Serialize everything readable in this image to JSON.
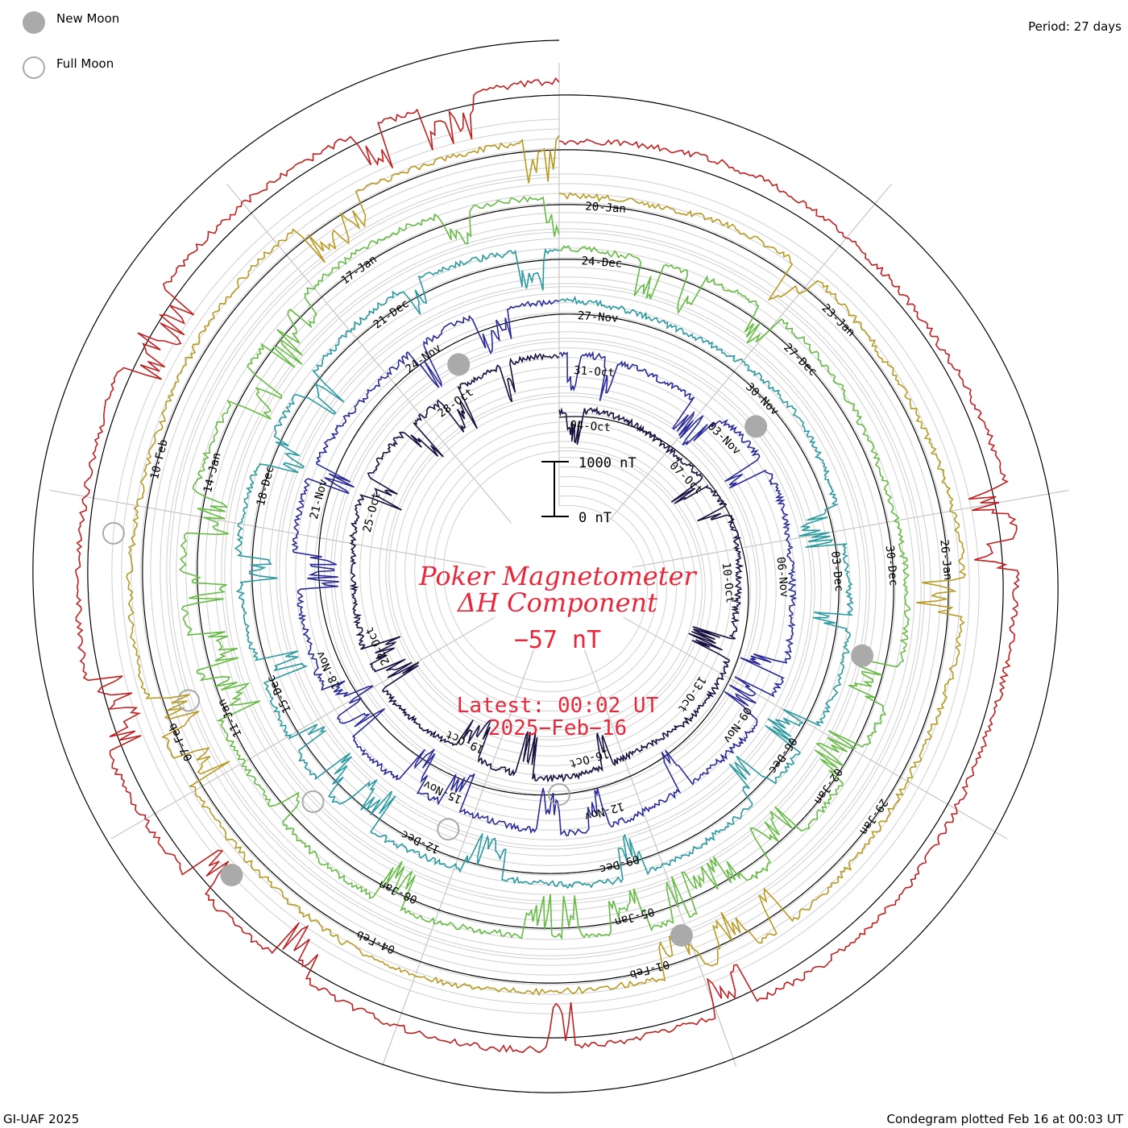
{
  "legend": {
    "new_moon_label": "New Moon",
    "full_moon_label": "Full Moon",
    "new_moon_color": "#aaaaaa",
    "full_moon_color": "#aaaaaa"
  },
  "header": {
    "period": "Period: 27 days"
  },
  "footer": {
    "left": "GI-UAF 2025",
    "right": "Condegram plotted Feb 16 at 00:03 UT"
  },
  "center": {
    "title_line1": "Poker Magnetometer",
    "title_line2": "ΔH Component",
    "value": "−57 nT",
    "latest": "Latest: 00:02 UT",
    "date": "2025−Feb−16",
    "text_color": "#e8283a",
    "scale_top": "1000 nT",
    "scale_bottom": "0 nT"
  },
  "chart_data": {
    "type": "line",
    "title": "Poker Magnetometer ΔH Component",
    "period_days": 27,
    "latest_value_nT": -57,
    "scale_bar_nT": [
      0,
      1000
    ],
    "grid": true,
    "series": [
      {
        "color": "#1a1040",
        "labels": [
          "04-Oct",
          "07-Oct",
          "10-Oct",
          "13-Oct",
          "16-Oct",
          "19-Oct",
          "22-Oct",
          "25-Oct",
          "28-Oct"
        ]
      },
      {
        "color": "#2a2a9a",
        "labels": [
          "31-Oct",
          "03-Nov",
          "06-Nov",
          "09-Nov",
          "12-Nov",
          "15-Nov",
          "18-Nov",
          "21-Nov",
          "24-Nov"
        ]
      },
      {
        "color": "#2a9aa0",
        "labels": [
          "27-Nov",
          "30-Nov",
          "03-Dec",
          "06-Dec",
          "09-Dec",
          "12-Dec",
          "15-Dec",
          "18-Dec",
          "21-Dec"
        ]
      },
      {
        "color": "#66bb44",
        "labels": [
          "24-Dec",
          "27-Dec",
          "30-Dec",
          "02-Jan",
          "05-Jan",
          "08-Jan",
          "11-Jan",
          "14-Jan",
          "17-Jan"
        ]
      },
      {
        "color": "#b89a22",
        "labels": [
          "20-Jan",
          "23-Jan",
          "26-Jan",
          "29-Jan",
          "01-Feb",
          "04-Feb",
          "07-Feb",
          "10-Feb"
        ]
      },
      {
        "color": "#c02020",
        "labels": []
      }
    ],
    "new_moons": [
      "02-Oct",
      "01-Nov",
      "01-Dec",
      "30-Dec",
      "29-Jan"
    ],
    "full_moons": [
      "17-Oct",
      "15-Nov",
      "15-Dec",
      "13-Jan",
      "12-Feb"
    ]
  }
}
